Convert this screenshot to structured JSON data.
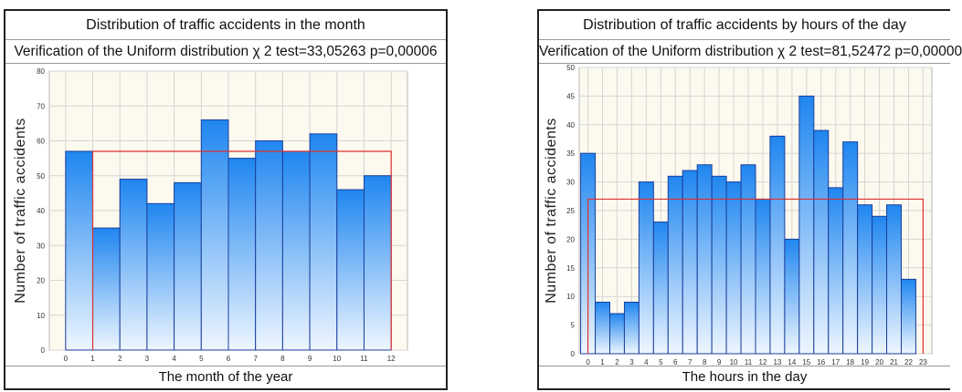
{
  "colors": {
    "bar_top": "#1f86f0",
    "bar_bottom": "#eef6ff",
    "bar_edge": "#1a3f9c",
    "fit_line": "#e03030",
    "plot_background": "#fcf9ee"
  },
  "chart_data": [
    {
      "type": "bar",
      "title": "Distribution of traffic accidents in the month",
      "subtitle": "Verification of the Uniform distribution χ 2 test=33,05263 p=0,00006",
      "xlabel": "The month of the year",
      "ylabel": "Number of traffic accidents",
      "x_ticks": [
        "0",
        "1",
        "2",
        "3",
        "4",
        "5",
        "6",
        "7",
        "8",
        "9",
        "10",
        "11",
        "12"
      ],
      "y_ticks": [
        "0",
        "10",
        "20",
        "30",
        "40",
        "50",
        "60",
        "70",
        "80"
      ],
      "xlim": [
        -0.6,
        12.6
      ],
      "ylim": [
        0,
        80
      ],
      "bar_start": 0,
      "bar_width": 1,
      "values": [
        57,
        35,
        49,
        42,
        48,
        66,
        55,
        60,
        57,
        62,
        46,
        50
      ],
      "fit": {
        "type": "uniform",
        "from": 1,
        "to": 12,
        "value": 57
      },
      "grid": true
    },
    {
      "type": "bar",
      "title": "Distribution of traffic accidents by hours of the day",
      "subtitle": "Verification of the Uniform distribution χ 2 test=81,52472 p=0,00000",
      "xlabel": "The hours in the day",
      "ylabel": "Number of traffic accidents",
      "x_ticks": [
        "0",
        "1",
        "2",
        "3",
        "4",
        "5",
        "6",
        "7",
        "8",
        "9",
        "10",
        "11",
        "12",
        "13",
        "14",
        "15",
        "16",
        "17",
        "18",
        "19",
        "20",
        "21",
        "22",
        "23"
      ],
      "y_ticks": [
        "0",
        "5",
        "10",
        "15",
        "20",
        "25",
        "30",
        "35",
        "40",
        "45",
        "50"
      ],
      "xlim": [
        -0.6,
        23.6
      ],
      "ylim": [
        0,
        50
      ],
      "bar_start": -0.5,
      "bar_width": 1,
      "values": [
        35,
        9,
        7,
        9,
        30,
        23,
        31,
        32,
        33,
        31,
        30,
        33,
        27,
        38,
        20,
        45,
        39,
        29,
        37,
        26,
        24,
        26,
        13
      ],
      "fit": {
        "type": "uniform",
        "from": 0,
        "to": 23,
        "value": 27
      },
      "grid": true
    }
  ]
}
